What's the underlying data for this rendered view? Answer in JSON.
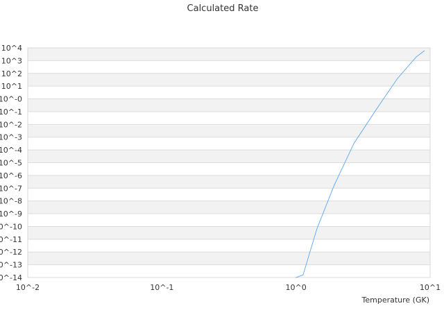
{
  "chart_data": {
    "type": "line",
    "title": "Calculated Rate",
    "xlabel": "Temperature (GK)",
    "ylabel": "",
    "xscale": "log",
    "yscale": "log",
    "xlim": [
      0.01,
      10
    ],
    "ylim": [
      1e-14,
      10000.0
    ],
    "x_tick_labels": [
      "10^-2",
      "10^-1",
      "10^0",
      "10^1"
    ],
    "y_tick_labels": [
      "10^4",
      "10^3",
      "10^2",
      "10^1",
      "10^-0",
      "10^-1",
      "10^-2",
      "10^-3",
      "10^-4",
      "10^-5",
      "10^-6",
      "10^-7",
      "10^-8",
      "10^-9",
      "10^-10",
      "10^-11",
      "10^-12",
      "10^-13",
      "10^-14"
    ],
    "grid": "horizontal alternating bands",
    "legend": "none",
    "series_color": "#6aaef0",
    "series": [
      {
        "x": [
          1.0,
          1.13,
          1.43,
          1.93,
          2.7,
          4.0,
          5.7,
          7.9,
          9.06
        ],
        "y": [
          1e-14,
          1.6e-14,
          6.3e-11,
          1.8e-07,
          0.00032,
          0.17,
          39,
          2000,
          5900
        ]
      }
    ]
  }
}
